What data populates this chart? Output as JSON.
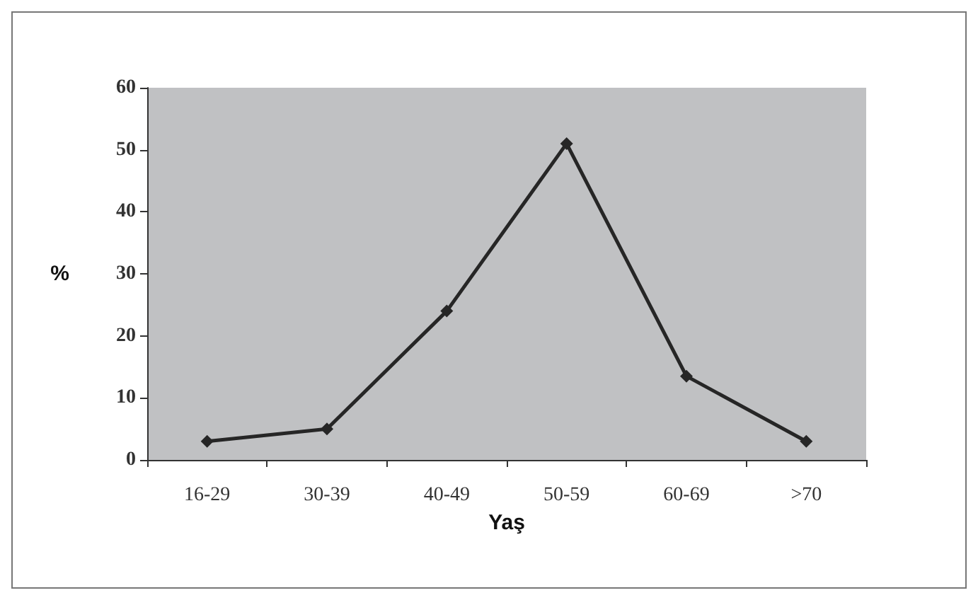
{
  "chart_data": {
    "type": "line",
    "xlabel": "Yaş",
    "ylabel": "%",
    "categories": [
      "16-29",
      "30-39",
      "40-49",
      "50-59",
      "60-69",
      ">70"
    ],
    "values": [
      3,
      5,
      24,
      51,
      13.5,
      3
    ],
    "color": "#262626",
    "marker": "diamond",
    "line_style": "solid",
    "ylim": [
      0,
      60
    ],
    "yticks": [
      0,
      10,
      20,
      30,
      40,
      50,
      60
    ],
    "grid": false
  }
}
